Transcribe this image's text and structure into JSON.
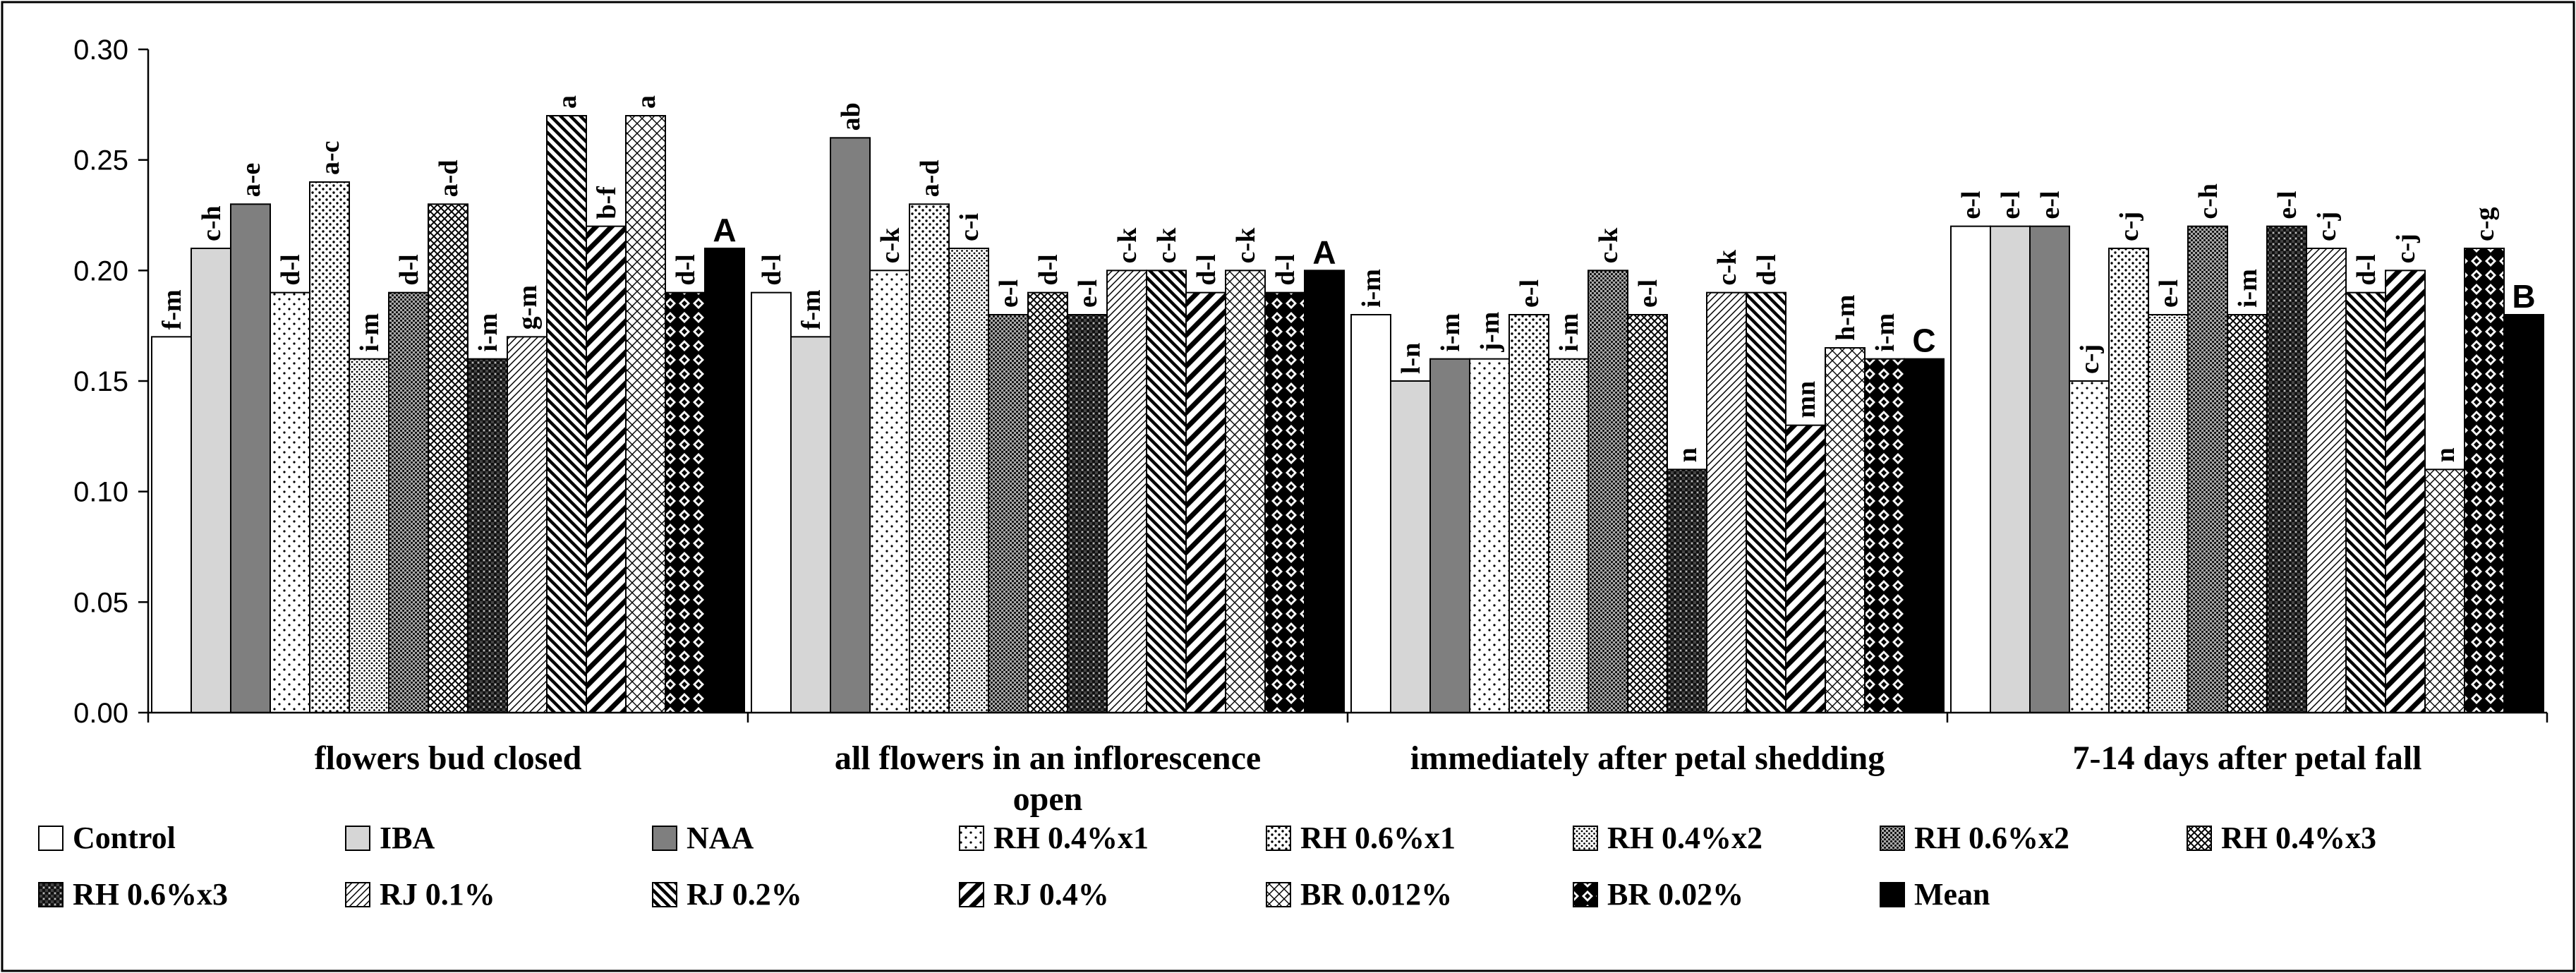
{
  "chart_data": {
    "type": "bar",
    "ylim": [
      0,
      0.3
    ],
    "yticks": [
      0.0,
      0.05,
      0.1,
      0.15,
      0.2,
      0.25,
      0.3
    ],
    "ytick_labels": [
      "0.00",
      "0.05",
      "0.10",
      "0.15",
      "0.20",
      "0.25",
      "0.30"
    ],
    "categories": [
      "flowers bud closed",
      "all flowers in an inflorescence open",
      "immediately after petal shedding",
      "7-14 days after petal fall"
    ],
    "category_lines": [
      [
        "flowers bud closed"
      ],
      [
        "all flowers in an inflorescence",
        "open"
      ],
      [
        "immediately after petal shedding"
      ],
      [
        "7-14 days after petal fall"
      ]
    ],
    "series": [
      {
        "name": "Control",
        "pattern": "white",
        "values": [
          0.17,
          0.19,
          0.18,
          0.22
        ],
        "letters": [
          "f-m",
          "d-l",
          "i-m",
          "e-l"
        ]
      },
      {
        "name": "IBA",
        "pattern": "lightgray",
        "values": [
          0.21,
          0.17,
          0.15,
          0.22
        ],
        "letters": [
          "c-h",
          "f-m",
          "l-n",
          "e-l"
        ]
      },
      {
        "name": "NAA",
        "pattern": "darkgray",
        "values": [
          0.23,
          0.26,
          0.16,
          0.22
        ],
        "letters": [
          "a-e",
          "ab",
          "i-m",
          "e-l"
        ]
      },
      {
        "name": "RH 0.4%x1",
        "pattern": "sparse-dots",
        "values": [
          0.19,
          0.2,
          0.16,
          0.15
        ],
        "letters": [
          "d-l",
          "c-k",
          "j-m",
          "c-j"
        ]
      },
      {
        "name": "RH 0.6%x1",
        "pattern": "dots",
        "values": [
          0.24,
          0.23,
          0.18,
          0.21
        ],
        "letters": [
          "a-c",
          "a-d",
          "e-l",
          "c-j"
        ]
      },
      {
        "name": "RH 0.4%x2",
        "pattern": "fine-dots",
        "values": [
          0.16,
          0.21,
          0.16,
          0.18
        ],
        "letters": [
          "i-m",
          "c-i",
          "i-m",
          "e-l"
        ]
      },
      {
        "name": "RH 0.6%x2",
        "pattern": "dense-dots",
        "values": [
          0.19,
          0.18,
          0.2,
          0.22
        ],
        "letters": [
          "d-l",
          "e-l",
          "c-k",
          "c-h"
        ]
      },
      {
        "name": "RH 0.4%x3",
        "pattern": "crosshatch",
        "values": [
          0.23,
          0.19,
          0.18,
          0.18
        ],
        "letters": [
          "a-d",
          "d-l",
          "e-l",
          "i-m"
        ]
      },
      {
        "name": "RH 0.6%x3",
        "pattern": "dark-check",
        "values": [
          0.16,
          0.18,
          0.11,
          0.22
        ],
        "letters": [
          "i-m",
          "e-l",
          "n",
          "e-l"
        ]
      },
      {
        "name": "RJ 0.1%",
        "pattern": "thin-diag",
        "values": [
          0.17,
          0.2,
          0.19,
          0.21
        ],
        "letters": [
          "g-m",
          "c-k",
          "c-k",
          "c-j"
        ]
      },
      {
        "name": "RJ 0.2%",
        "pattern": "back-diag",
        "values": [
          0.27,
          0.2,
          0.19,
          0.19
        ],
        "letters": [
          "a",
          "c-k",
          "d-l",
          "d-l"
        ]
      },
      {
        "name": "RJ 0.4%",
        "pattern": "wide-diag",
        "values": [
          0.22,
          0.19,
          0.13,
          0.2
        ],
        "letters": [
          "b-f",
          "d-l",
          "mn",
          "c-j"
        ]
      },
      {
        "name": "BR 0.012%",
        "pattern": "diamond",
        "values": [
          0.27,
          0.2,
          0.165,
          0.11
        ],
        "letters": [
          "a",
          "c-k",
          "h-m",
          "n"
        ]
      },
      {
        "name": "BR 0.02%",
        "pattern": "black-diamond",
        "values": [
          0.19,
          0.19,
          0.16,
          0.21
        ],
        "letters": [
          "d-l",
          "d-l",
          "i-m",
          "c-g"
        ]
      },
      {
        "name": "Mean",
        "pattern": "black",
        "values": [
          0.21,
          0.2,
          0.16,
          0.18
        ],
        "letters": [
          "A",
          "A",
          "C",
          "B"
        ]
      }
    ],
    "legend_labels": [
      "Control",
      "IBA",
      "NAA",
      "RH 0.4%x1",
      "RH 0.6%x1",
      "RH 0.4%x2",
      "RH 0.6%x2",
      "RH 0.4%x3",
      "RH 0.6%x3",
      "RJ 0.1%",
      "RJ 0.2%",
      "RJ 0.4%",
      "BR 0.012%",
      "BR 0.02%",
      "Mean"
    ],
    "legend_position": "bottom",
    "grid": false
  }
}
